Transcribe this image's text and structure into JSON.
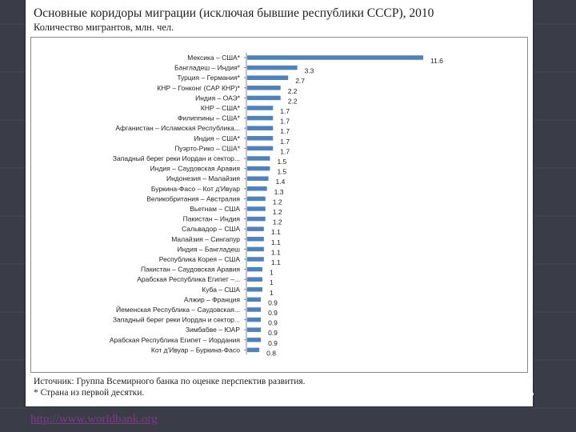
{
  "chart_data": {
    "type": "bar",
    "orientation": "horizontal",
    "title": "Основные коридоры миграции (исключая бывшие республики СССР), 2010",
    "subtitle": "Количество мигрантов, млн. чел.",
    "categories": [
      "Мексика – США*",
      "Бангладеш – Индия*",
      "Турция – Германия*",
      "КНР – Гонконг (САР КНР)*",
      "Индия – ОАЭ*",
      "КНР – США*",
      "Филиппины – США*",
      "Афганистан – Исламская Республика...",
      "Индия – США*",
      "Пуэрто-Рико – США*",
      "Западный берег реки Иордан и сектор...",
      "Индия – Саудовская Аравия",
      "Индонезия – Малайзия",
      "Буркина-Фасо – Кот д'Ивуар",
      "Великобритания – Австралия",
      "Вьетнам – США",
      "Пакистан – Индия",
      "Сальвадор – США",
      "Малайзия – Сингапур",
      "Индия – Бангладеш",
      "Республика Корея – США",
      "Пакистан – Саудовская Аравия",
      "Арабская Республика Египет –...",
      "Куба – США",
      "Алжир – Франция",
      "Йеменская Республика – Саудовская...",
      "Западный берег реки Иордан и сектор...",
      "Зимбабве – ЮАР",
      "Арабская Республика Египет – Иордания",
      "Кот д'Ивуар – Буркина-Фасо"
    ],
    "values": [
      11.6,
      3.3,
      2.7,
      2.2,
      2.2,
      1.7,
      1.7,
      1.7,
      1.7,
      1.7,
      1.5,
      1.5,
      1.4,
      1.3,
      1.2,
      1.2,
      1.2,
      1.1,
      1.1,
      1.1,
      1.1,
      1,
      1,
      1,
      0.9,
      0.9,
      0.9,
      0.9,
      0.9,
      0.8
    ],
    "value_labels": [
      "11.6",
      "3.3",
      "2.7",
      "2.2",
      "2.2",
      "1.7",
      "1.7",
      "1.7",
      "1.7",
      "1.7",
      "1.5",
      "1.5",
      "1.4",
      "1.3",
      "1.2",
      "1.2",
      "1.2",
      "1.1",
      "1.1",
      "1.1",
      "1.1",
      "1",
      "1",
      "1",
      "0.9",
      "0.9",
      "0.9",
      "0.9",
      "0.9",
      "0.8"
    ],
    "xlim": [
      0,
      11.6
    ],
    "bar_color": "#4f81bd",
    "grid": false,
    "legend": "none"
  },
  "source_line1": "Источник: Группа Всемирного банка по оценке перспектив развития.",
  "source_line2": "* Страна из первой десятки.",
  "link_text": "http://www.worldbank.org"
}
